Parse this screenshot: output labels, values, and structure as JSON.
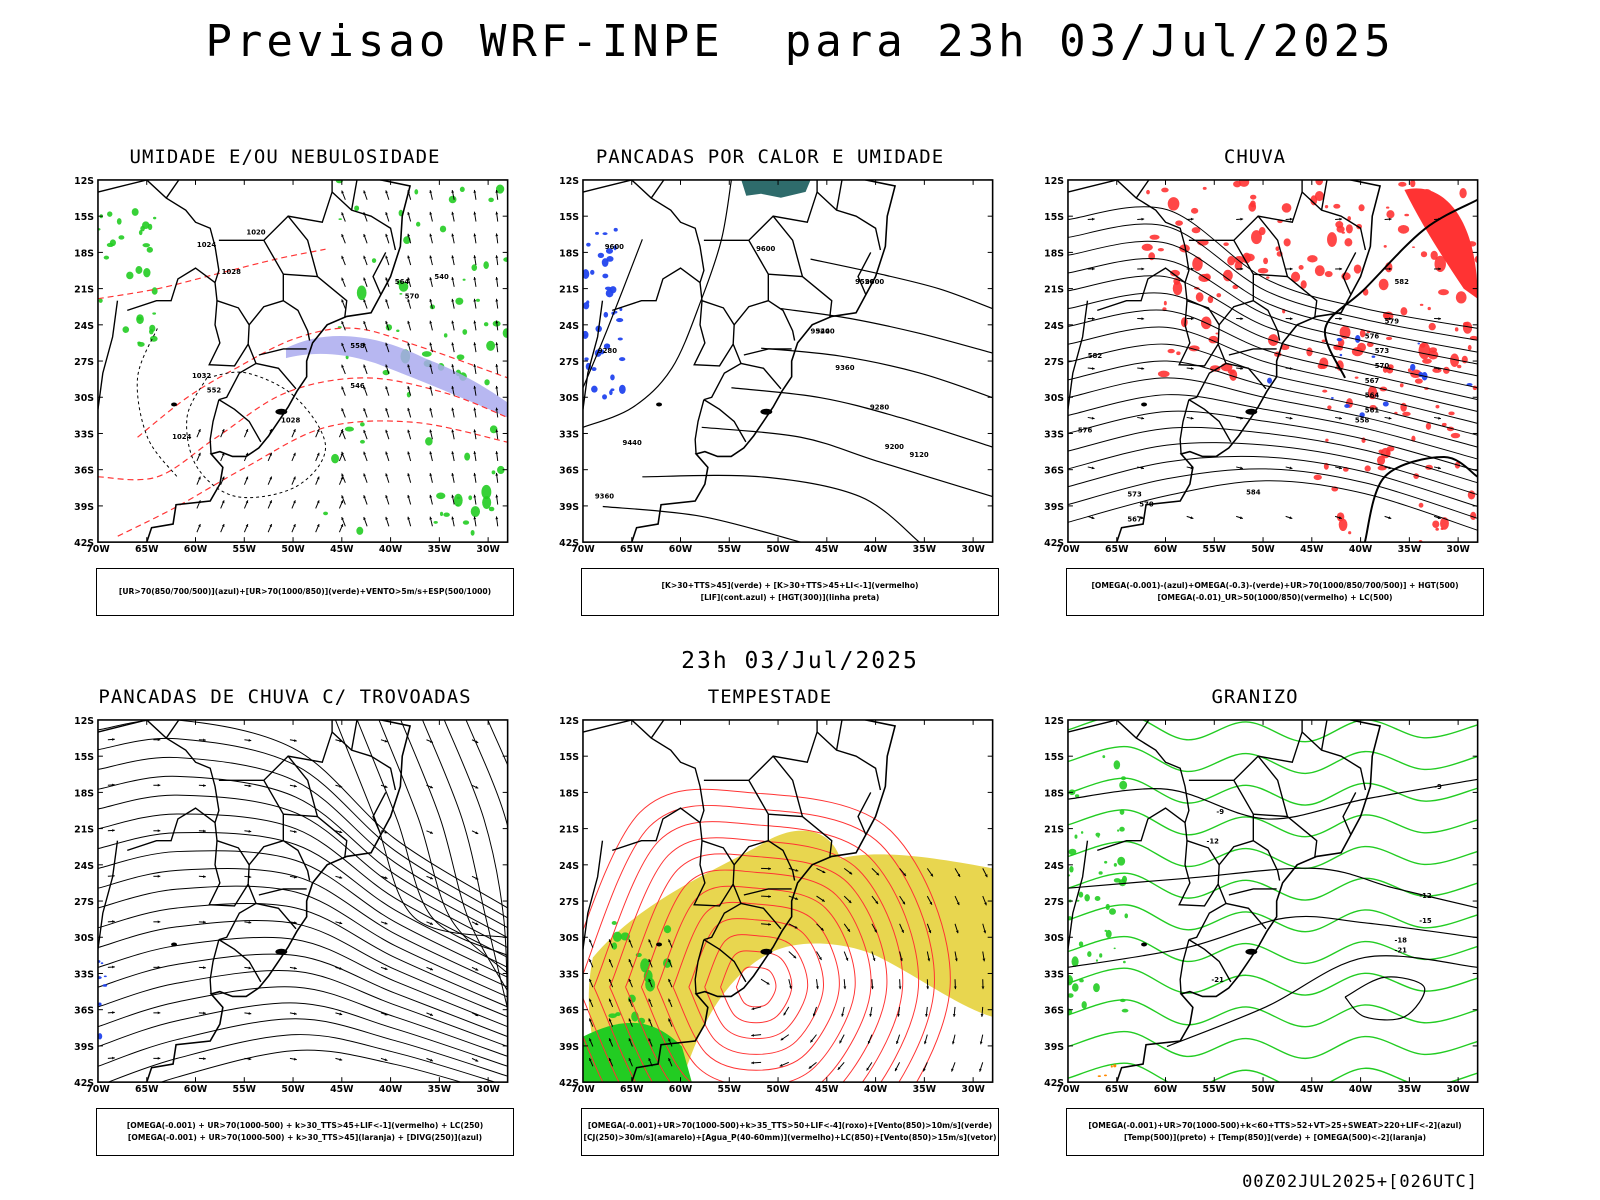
{
  "header": {
    "title": "Previsao WRF-INPE  para 23h 03/Jul/2025",
    "mid_title": "23h 03/Jul/2025",
    "footer": "00Z02JUL2025+[026UTC]"
  },
  "axes": {
    "y_ticks": [
      "12S",
      "15S",
      "18S",
      "21S",
      "24S",
      "27S",
      "30S",
      "33S",
      "36S",
      "39S",
      "42S"
    ],
    "x_ticks": [
      "70W",
      "65W",
      "60W",
      "55W",
      "50W",
      "45W",
      "40W",
      "35W",
      "30W"
    ]
  },
  "colors": {
    "contour": "#000000",
    "green": "#22cc22",
    "red": "#ff3333",
    "blue": "#2244ee",
    "yellow": "#e6d23c",
    "lavender": "#aaaaee",
    "teal": "#2e6b6b"
  },
  "panels": [
    {
      "title": "UMIDADE E/OU NEBULOSIDADE",
      "caption": [
        "[UR>70(850/700/500)](azul)+[UR>70(1000/850)](verde)+VENTO>5m/s+ESP(500/1000)"
      ],
      "contour_labels": [
        "1020",
        "1024",
        "1028",
        "1032",
        "1028",
        "1024",
        "552",
        "564",
        "570",
        "546",
        "540",
        "558"
      ]
    },
    {
      "title": "PANCADAS POR CALOR E UMIDADE",
      "caption": [
        "[K>30+TTS>45](verde) + [K>30+TTS>45+LI<-1](vermelho)",
        "[LIF](cont.azul) + [HGT(300)](linha preta)"
      ],
      "contour_labels": [
        "9600",
        "9600",
        "9520",
        "9440",
        "9360",
        "9280",
        "9200",
        "9120",
        "9440",
        "9360",
        "9280",
        "9520",
        "9600"
      ]
    },
    {
      "title": "CHUVA",
      "caption": [
        "[OMEGA(-0.001)-(azul)+OMEGA(-0.3)-(verde)+UR>70(1000/850/700/500)] + HGT(500)",
        "[OMEGA(-0.01)_UR>50(1000/850)(vermelho) + LC(500)"
      ],
      "contour_labels": [
        "582",
        "579",
        "576",
        "573",
        "570",
        "567",
        "564",
        "561",
        "558",
        "584",
        "576",
        "573",
        "570",
        "567",
        "582"
      ]
    },
    {
      "title": "PANCADAS DE CHUVA C/ TROVOADAS",
      "caption": [
        "[OMEGA(-0.001) + UR>70(1000-500) + k>30_TTS>45+LIF<-1](vermelho) + LC(250)",
        "[OMEGA(-0.001) + UR>70(1000-500) + k>30_TTS>45](laranja) + [DIVG(250)](azul)"
      ],
      "contour_labels": []
    },
    {
      "title": "TEMPESTADE",
      "caption": [
        "[OMEGA(-0.001)+UR>70(1000-500)+k>35_TTS>50+LIF<-4](roxo)+[Vento(850)>10m/s](verde)",
        "[CJ(250)>30m/s](amarelo)+[Agua_P(40-60mm)](vermelho)+LC(850)+[Vento(850)>15m/s](vetor)"
      ],
      "contour_labels": []
    },
    {
      "title": "GRANIZO",
      "caption": [
        "[OMEGA(-0.001)+UR>70(1000-500)+k<60+TTS>52+VT>25+SWEAT>220+LIF<-2](azul)",
        "[Temp(500)](preto) + [Temp(850)](verde) + [OMEGA(500)<-2](laranja)"
      ],
      "contour_labels": [
        "-9",
        "-12",
        "-15",
        "-18",
        "-21",
        "-9",
        "-12",
        "-21"
      ]
    }
  ]
}
